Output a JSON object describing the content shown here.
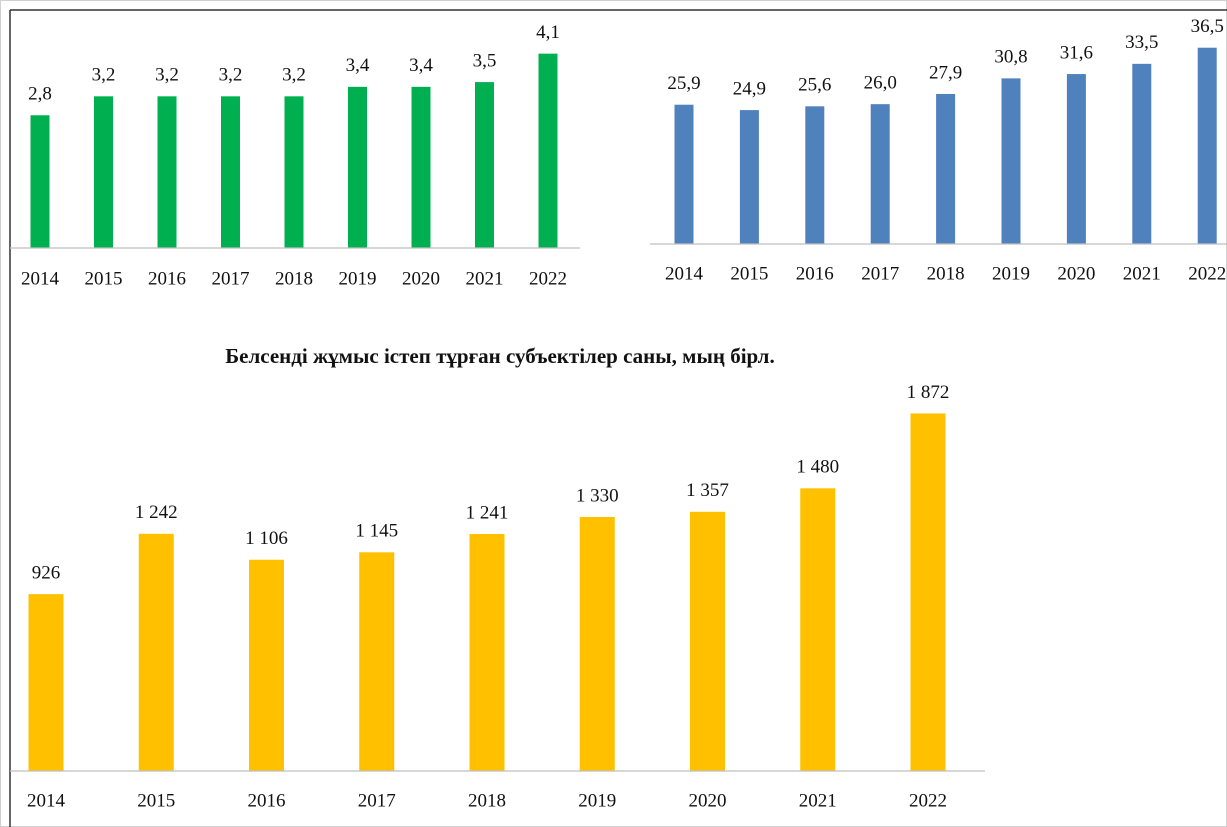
{
  "chart_data": [
    {
      "type": "bar",
      "categories": [
        "2014",
        "2015",
        "2016",
        "2017",
        "2018",
        "2019",
        "2020",
        "2021",
        "2022"
      ],
      "values": [
        2.8,
        3.2,
        3.2,
        3.2,
        3.2,
        3.4,
        3.4,
        3.5,
        4.1
      ],
      "value_labels": [
        "2,8",
        "3,2",
        "3,2",
        "3,2",
        "3,2",
        "3,4",
        "3,4",
        "3,5",
        "4,1"
      ],
      "color": "#00b050",
      "ylim": [
        0,
        5
      ]
    },
    {
      "type": "bar",
      "categories": [
        "2014",
        "2015",
        "2016",
        "2017",
        "2018",
        "2019",
        "2020",
        "2021",
        "2022"
      ],
      "values": [
        25.9,
        24.9,
        25.6,
        26.0,
        27.9,
        30.8,
        31.6,
        33.5,
        36.5
      ],
      "value_labels": [
        "25,9",
        "24,9",
        "25,6",
        "26,0",
        "27,9",
        "30,8",
        "31,6",
        "33,5",
        "36,5"
      ],
      "color": "#4f81bd",
      "ylim": [
        0,
        45
      ]
    },
    {
      "type": "bar",
      "title": "Белсенді жұмыс істеп тұрған субъектілер саны, мың бірл.",
      "categories": [
        "2014",
        "2015",
        "2016",
        "2017",
        "2018",
        "2019",
        "2020",
        "2021",
        "2022"
      ],
      "values": [
        926,
        1242,
        1106,
        1145,
        1241,
        1330,
        1357,
        1480,
        1872
      ],
      "value_labels": [
        "926",
        "1 242",
        "1 106",
        "1 145",
        "1 241",
        "1 330",
        "1 357",
        "1 480",
        "1 872"
      ],
      "color": "#ffc000",
      "ylim": [
        0,
        2000
      ]
    }
  ]
}
